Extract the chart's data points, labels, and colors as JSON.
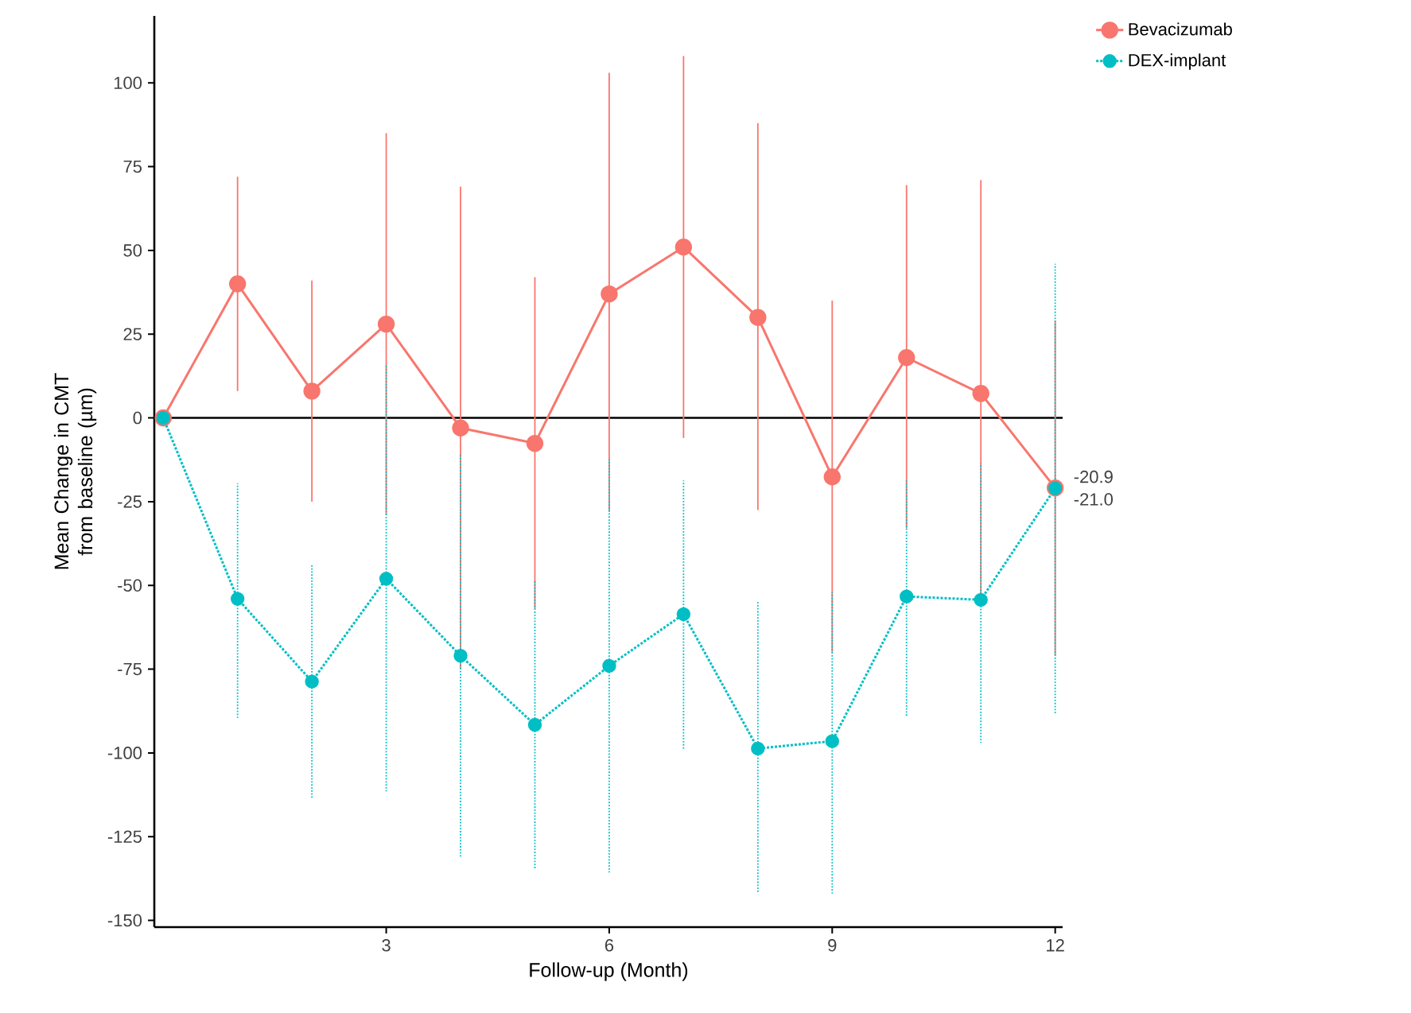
{
  "chart_data": {
    "type": "line",
    "xlabel": "Follow-up (Month)",
    "ylabel": "Mean Change in CMT from baseline (µm)",
    "x": [
      0,
      1,
      2,
      3,
      4,
      5,
      6,
      7,
      8,
      9,
      10,
      11,
      12
    ],
    "xlim": [
      -0.12,
      12.1
    ],
    "xticks": [
      3,
      6,
      9,
      12
    ],
    "ylim": [
      -152,
      120
    ],
    "yticks": [
      -150,
      -125,
      -100,
      -75,
      -50,
      -25,
      0,
      25,
      50,
      75,
      100
    ],
    "grid": false,
    "legend": "top right",
    "marker": "circle",
    "ref_lines": [
      {
        "axis": "y",
        "value": 0,
        "color": "#000000",
        "line_style": "solid"
      }
    ],
    "annotations": [
      {
        "text": "-20.9",
        "x": 12,
        "y": -20.9
      },
      {
        "text": "-21.0",
        "x": 12,
        "y": -21.0
      }
    ],
    "series": [
      {
        "name": "Bevacizumab",
        "color": "#F8766D",
        "line_style": "solid",
        "values": [
          0,
          40,
          8,
          28,
          -3,
          -7.6,
          37,
          51,
          30,
          -17.6,
          18,
          7.3,
          -20.9
        ],
        "errors": [
          null,
          [
            8,
            72
          ],
          [
            -25,
            41
          ],
          [
            -29,
            85
          ],
          [
            -75,
            69
          ],
          [
            -57,
            42
          ],
          [
            -28,
            103
          ],
          [
            -6,
            108
          ],
          [
            -27.5,
            88
          ],
          [
            -70,
            35
          ],
          [
            -33,
            69.5
          ],
          [
            -56,
            71
          ],
          [
            -71,
            29
          ]
        ]
      },
      {
        "name": "DEX-implant",
        "color": "#00BFC4",
        "line_style": "dotted",
        "values": [
          0,
          -54,
          -78.7,
          -48,
          -71,
          -91.6,
          -74,
          -58.6,
          -98.7,
          -96.5,
          -53.3,
          -54.3,
          -21.0
        ],
        "errors": [
          null,
          [
            -89.5,
            -19.5
          ],
          [
            -113.5,
            -44
          ],
          [
            -111.5,
            16
          ],
          [
            -131,
            -11
          ],
          [
            -134.6,
            -48.4
          ],
          [
            -135.7,
            -12.4
          ],
          [
            -99,
            -18.7
          ],
          [
            -142,
            -55
          ],
          [
            -142,
            -52
          ],
          [
            -89,
            -18.7
          ],
          [
            -97,
            -13.5
          ],
          [
            -88.6,
            46
          ]
        ]
      }
    ]
  }
}
